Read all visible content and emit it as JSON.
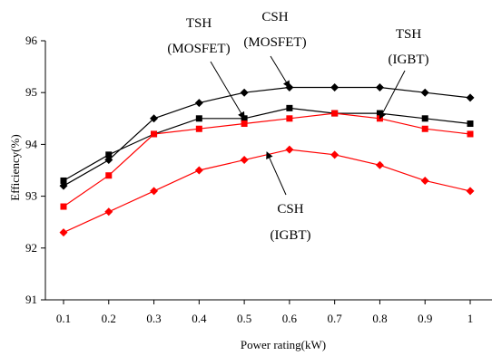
{
  "chart_data": {
    "type": "line",
    "xlabel": "Power rating(kW)",
    "ylabel": "Efficiency(%)",
    "xlim": [
      0.1,
      1.0
    ],
    "ylim": [
      91,
      96
    ],
    "x": [
      0.1,
      0.2,
      0.3,
      0.4,
      0.5,
      0.6,
      0.7,
      0.8,
      0.9,
      1.0
    ],
    "x_tick_labels": [
      "0.1",
      "0.2",
      "0.3",
      "0.4",
      "0.5",
      "0.6",
      "0.7",
      "0.8",
      "0.9",
      "1"
    ],
    "y_ticks": [
      91,
      92,
      93,
      94,
      95,
      96
    ],
    "y_tick_labels": [
      "91",
      "92",
      "93",
      "94",
      "95",
      "96"
    ],
    "grid": false,
    "series": [
      {
        "marker": "diamond",
        "color": "#000000",
        "values": [
          93.2,
          93.7,
          94.5,
          94.8,
          95.0,
          95.1,
          95.1,
          95.1,
          95.0,
          94.9
        ]
      },
      {
        "marker": "square",
        "color": "#000000",
        "values": [
          93.3,
          93.8,
          94.2,
          94.5,
          94.5,
          94.7,
          94.6,
          94.6,
          94.5,
          94.4
        ]
      },
      {
        "marker": "square",
        "color": "#ff0000",
        "values": [
          92.8,
          93.4,
          94.2,
          94.3,
          94.4,
          94.5,
          94.6,
          94.5,
          94.3,
          94.2
        ]
      },
      {
        "marker": "diamond",
        "color": "#ff0000",
        "values": [
          92.3,
          92.7,
          93.1,
          93.5,
          93.7,
          93.9,
          93.8,
          93.6,
          93.3,
          93.1
        ]
      }
    ],
    "annotations": [
      {
        "lines": [
          "TSH",
          "(MOSFET)"
        ],
        "target": {
          "x": 0.5,
          "y": 94.5
        }
      },
      {
        "lines": [
          "CSH",
          "(MOSFET)"
        ],
        "target": {
          "x": 0.6,
          "y": 95.1
        }
      },
      {
        "lines": [
          "TSH",
          "(IGBT)"
        ],
        "target": {
          "x": 0.8,
          "y": 94.5
        }
      },
      {
        "lines": [
          "CSH",
          "(IGBT)"
        ],
        "target": {
          "x": 0.55,
          "y": 93.85
        }
      }
    ]
  }
}
